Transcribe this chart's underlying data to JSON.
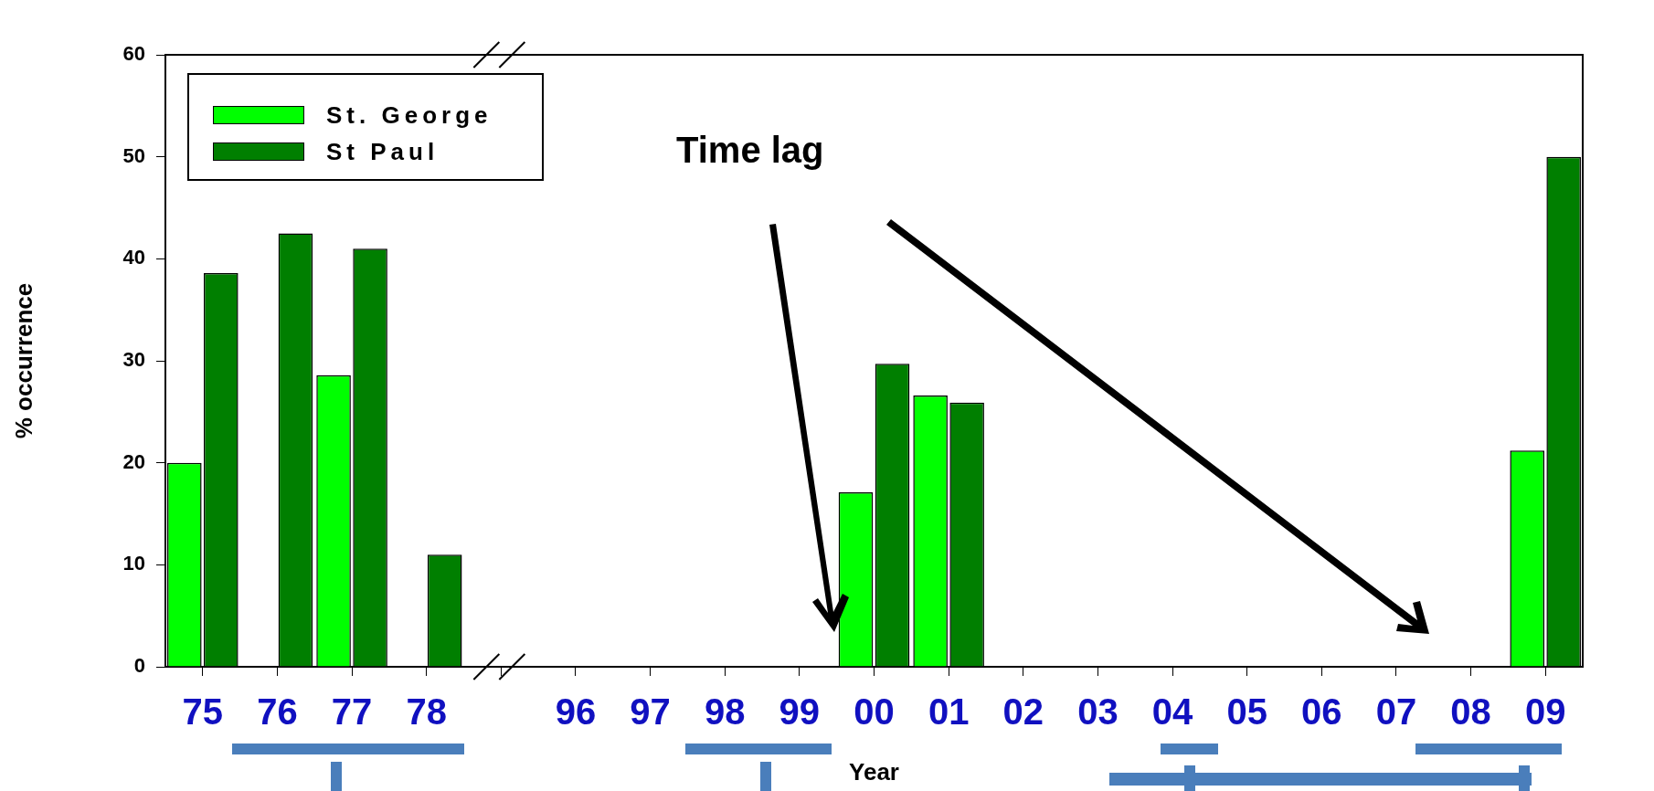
{
  "chart_data": {
    "type": "bar",
    "xlabel": "Year",
    "ylabel": "% occurrence",
    "categories": [
      "75",
      "76",
      "77",
      "78",
      null,
      "96",
      "97",
      "98",
      "99",
      "00",
      "01",
      "02",
      "03",
      "04",
      "05",
      "06",
      "07",
      "08",
      "09"
    ],
    "series": [
      {
        "name": "St. George",
        "color": "#00ff00",
        "values": [
          20,
          null,
          28.6,
          null,
          null,
          null,
          null,
          null,
          null,
          17.1,
          26.6,
          null,
          null,
          null,
          null,
          null,
          null,
          null,
          21.2
        ]
      },
      {
        "name": "St Paul",
        "color": "#007f00",
        "values": [
          38.6,
          42.5,
          41.0,
          11.0,
          null,
          null,
          null,
          null,
          null,
          29.7,
          25.9,
          null,
          null,
          null,
          null,
          null,
          null,
          null,
          50.0
        ]
      }
    ],
    "ylim": [
      0,
      60
    ],
    "yticks": [
      0,
      10,
      20,
      30,
      40,
      50,
      60
    ],
    "grid": false,
    "legend": "top left",
    "annotations": [
      "Time lag"
    ]
  }
}
